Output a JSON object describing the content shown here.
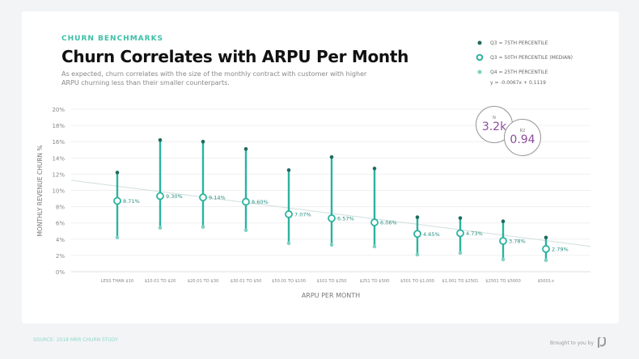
{
  "header": {
    "eyebrow": "CHURN BENCHMARKS",
    "title": "Churn Correlates with ARPU Per Month",
    "subtitle": "As expected, churn correlates with the size of the monthly contract with customer with higher ARPU churning less than their smaller counterparts."
  },
  "legend": {
    "items": [
      {
        "label": "Q3 = 75TH PERCENTILE",
        "color": "#1f6b5e"
      },
      {
        "label": "Q3 = 50TH PERCENTILE (MEDIAN)",
        "color": "#2bb39f"
      },
      {
        "label": "Q4 = 25TH PERCENTILE",
        "color": "#7fd1c2"
      }
    ],
    "equation": "y = -0.0067x + 0.1119"
  },
  "stats": {
    "n_label": "N",
    "n_value": "3.2k",
    "r2_label": "R2",
    "r2_value": "0.94"
  },
  "footer": {
    "source": "SOURCE: 2018 MRR CHURN STUDY",
    "brought": "Brought to you by"
  },
  "chart_data": {
    "type": "scatter",
    "xlabel": "ARPU PER MONTH",
    "ylabel": "MONTHLY REVENUE CHURN %",
    "ylim": [
      0,
      20
    ],
    "yticks": [
      "0%",
      "2%",
      "4%",
      "6%",
      "8%",
      "10%",
      "12%",
      "14%",
      "16%",
      "18%",
      "20%"
    ],
    "grid": true,
    "categories": [
      "LESS THAN $10",
      "$10.01 TO $20",
      "$20.01 TO $30",
      "$30.01 TO $50",
      "$50.01 TO $100",
      "$101 TO $250",
      "$251 TO $500",
      "$501 TO $1,000",
      "$1,001 TO $2501",
      "$2501 TO $5000",
      "$5001+"
    ],
    "series": [
      {
        "name": "Q3 = 75TH PERCENTILE",
        "values": [
          12.2,
          16.2,
          16.0,
          15.1,
          12.5,
          14.1,
          12.7,
          6.7,
          6.6,
          6.2,
          4.2
        ]
      },
      {
        "name": "Q3 = 50TH PERCENTILE (MEDIAN)",
        "values": [
          8.71,
          9.3,
          9.14,
          8.6,
          7.07,
          6.57,
          6.06,
          4.65,
          4.73,
          3.78,
          2.79
        ],
        "labels": [
          "8.71%",
          "9.30%",
          "9.14%",
          "8.60%",
          "7.07%",
          "6.57%",
          "6.06%",
          "4.65%",
          "4.73%",
          "3.78%",
          "2.79%"
        ]
      },
      {
        "name": "Q4 = 25TH PERCENTILE",
        "values": [
          4.2,
          5.4,
          5.5,
          5.1,
          3.5,
          3.3,
          3.1,
          2.1,
          2.3,
          1.5,
          1.4
        ]
      }
    ],
    "trendline": {
      "slope": -0.0067,
      "intercept": 0.1119
    }
  }
}
